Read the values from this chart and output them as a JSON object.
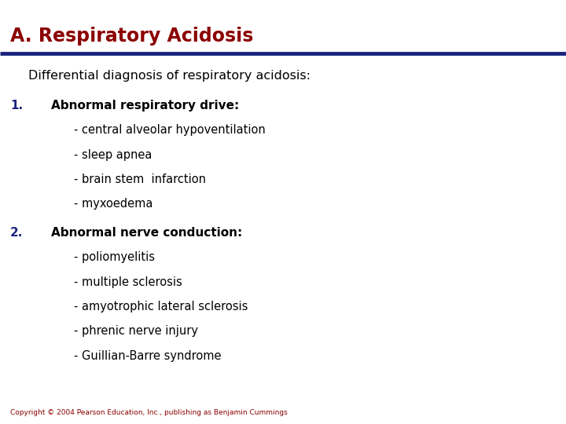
{
  "title": "A. Respiratory Acidosis",
  "title_color": "#8B0000",
  "title_fontsize": 17,
  "line_color": "#1a237e",
  "subtitle": "Differential diagnosis of respiratory acidosis:",
  "subtitle_color": "#000000",
  "subtitle_fontsize": 11.5,
  "background_color": "#ffffff",
  "number_color": "#1a237e",
  "number_fontsize": 11,
  "header_fontsize": 11,
  "body_fontsize": 10.5,
  "copyright": "Copyright © 2004 Pearson Education, Inc., publishing as Benjamin Cummings",
  "copyright_fontsize": 6.5,
  "copyright_color": "#8B0000",
  "items": [
    {
      "number": "1.",
      "header": "Abnormal respiratory drive:",
      "sub_items": [
        "- central alveolar hypoventilation",
        "- sleep apnea",
        "- brain stem  infarction",
        "- myxoedema"
      ]
    },
    {
      "number": "2.",
      "header": "Abnormal nerve conduction:",
      "sub_items": [
        "- poliomyelitis",
        "- multiple sclerosis",
        "- amyotrophic lateral sclerosis",
        "- phrenic nerve injury",
        "- Guillian-Barre syndrome"
      ]
    }
  ]
}
